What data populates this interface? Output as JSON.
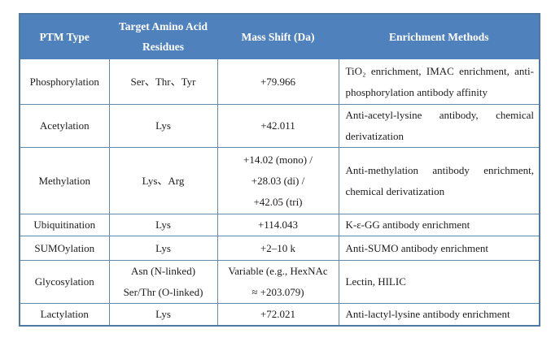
{
  "table": {
    "headers": [
      "PTM Type",
      "Target Amino Acid Residues",
      "Mass Shift (Da)",
      "Enrichment Methods"
    ],
    "rows": [
      {
        "ptm": "Phosphorylation",
        "residues": [
          "Ser、Thr、Tyr"
        ],
        "mass": [
          "+79.966"
        ],
        "methods": "TiO₂ enrichment, IMAC enrichment, anti-phosphorylation antibody affinity"
      },
      {
        "ptm": "Acetylation",
        "residues": [
          "Lys"
        ],
        "mass": [
          "+42.011"
        ],
        "methods": "Anti-acetyl-lysine antibody, chemical derivatization"
      },
      {
        "ptm": "Methylation",
        "residues": [
          "Lys、Arg"
        ],
        "mass": [
          "+14.02 (mono) /",
          "+28.03 (di) /",
          "+42.05 (tri)"
        ],
        "methods": "Anti-methylation antibody enrichment, chemical derivatization"
      },
      {
        "ptm": "Ubiquitination",
        "residues": [
          "Lys"
        ],
        "mass": [
          "+114.043"
        ],
        "methods": "K-ε-GG antibody enrichment"
      },
      {
        "ptm": "SUMOylation",
        "residues": [
          "Lys"
        ],
        "mass": [
          "+2–10 k"
        ],
        "methods": "Anti-SUMO antibody enrichment"
      },
      {
        "ptm": "Glycosylation",
        "residues": [
          "Asn (N-linked)",
          "Ser/Thr (O-linked)"
        ],
        "mass": [
          "Variable (e.g., HexNAc",
          "≈ +203.079)"
        ],
        "methods": "Lectin, HILIC"
      },
      {
        "ptm": "Lactylation",
        "residues": [
          "Lys"
        ],
        "mass": [
          "+72.021"
        ],
        "methods": "Anti-lactyl-lysine antibody enrichment"
      }
    ]
  },
  "colors": {
    "header_bg": "#4f81bd",
    "header_text": "#ffffff",
    "grid_line": "#6289a9",
    "outer_border": "#4c7aa2",
    "body_text": "#1c1c1c",
    "page_bg": "#ffffff"
  }
}
